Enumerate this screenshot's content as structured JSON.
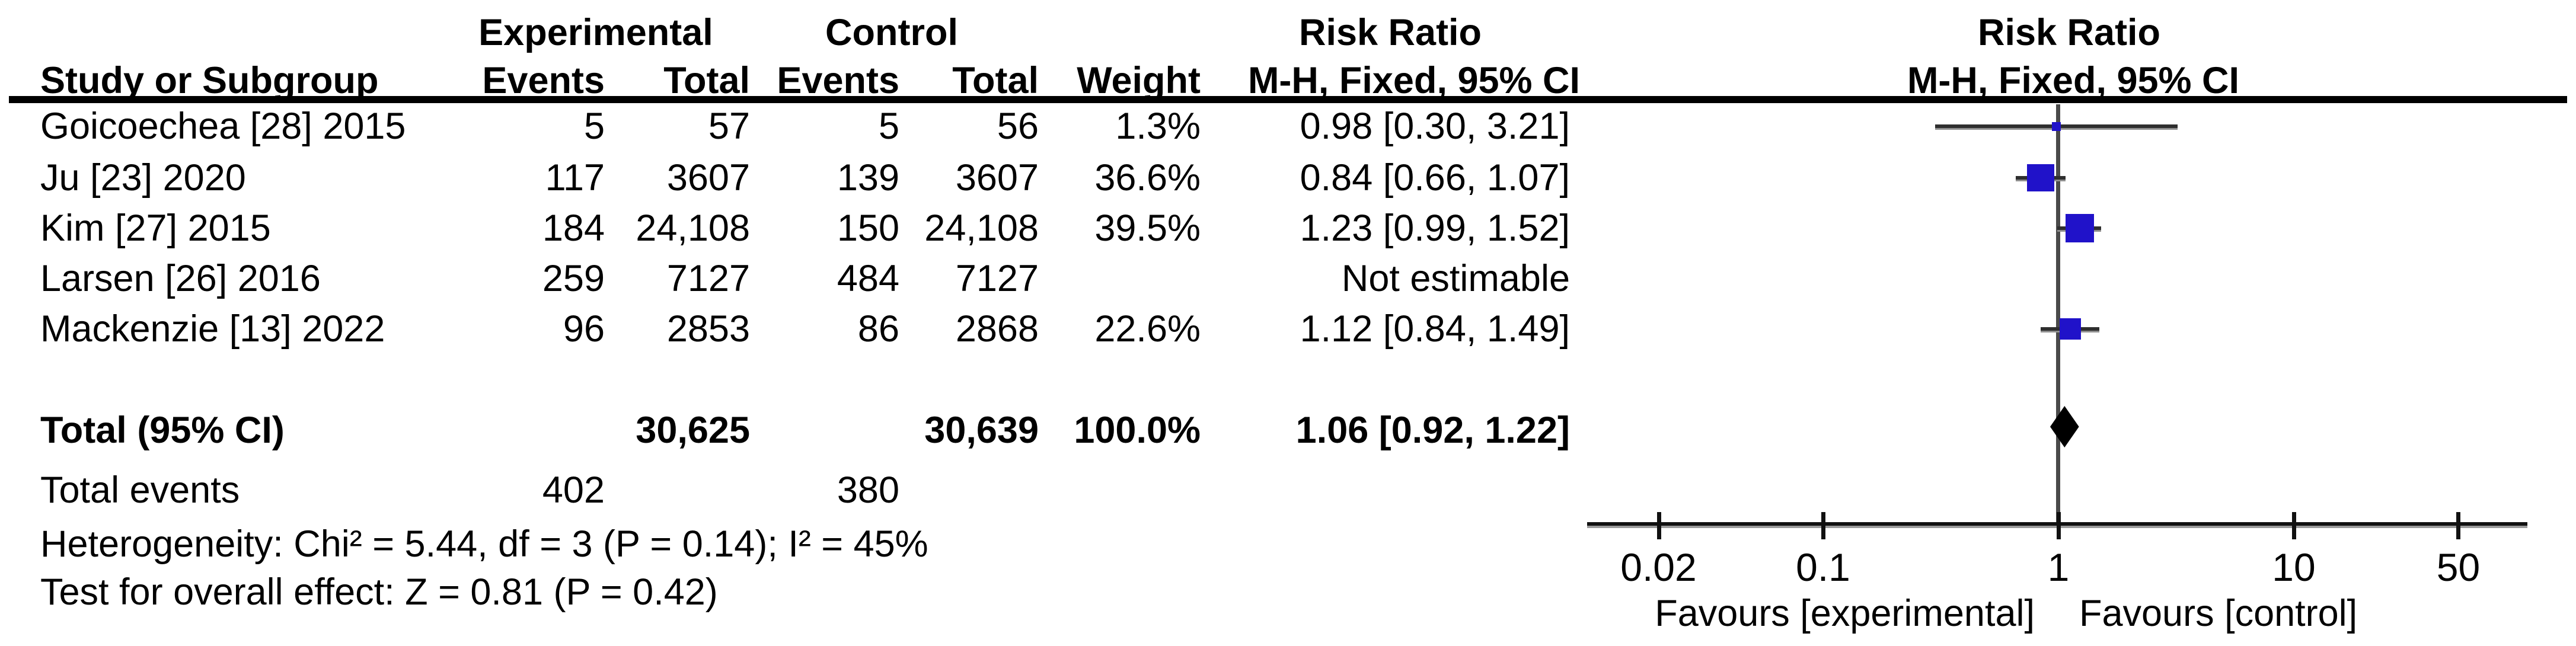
{
  "header": {
    "group_exp": "Experimental",
    "group_ctrl": "Control",
    "rr_col": "Risk Ratio",
    "rr_plot": "Risk Ratio",
    "study": "Study or Subgroup",
    "events": "Events",
    "total": "Total",
    "weight": "Weight",
    "mh_col": "M-H, Fixed, 95% CI",
    "mh_plot": "M-H, Fixed, 95% CI"
  },
  "chart_data": {
    "type": "forest",
    "effect_measure": "Risk Ratio",
    "method_label": "M-H, Fixed, 95% CI",
    "studies": [
      {
        "name": "Goicoechea [28] 2015",
        "exp_events": "5",
        "exp_total": "57",
        "ctrl_events": "5",
        "ctrl_total": "56",
        "weight": "1.3%",
        "weight_num": 1.3,
        "rr_text": "0.98 [0.30, 3.21]",
        "rr": 0.98,
        "ci_low": 0.3,
        "ci_high": 3.21,
        "estimable": true
      },
      {
        "name": "Ju [23] 2020",
        "exp_events": "117",
        "exp_total": "3607",
        "ctrl_events": "139",
        "ctrl_total": "3607",
        "weight": "36.6%",
        "weight_num": 36.6,
        "rr_text": "0.84 [0.66, 1.07]",
        "rr": 0.84,
        "ci_low": 0.66,
        "ci_high": 1.07,
        "estimable": true
      },
      {
        "name": "Kim [27] 2015",
        "exp_events": "184",
        "exp_total": "24,108",
        "ctrl_events": "150",
        "ctrl_total": "24,108",
        "weight": "39.5%",
        "weight_num": 39.5,
        "rr_text": "1.23 [0.99, 1.52]",
        "rr": 1.23,
        "ci_low": 0.99,
        "ci_high": 1.52,
        "estimable": true
      },
      {
        "name": "Larsen [26] 2016",
        "exp_events": "259",
        "exp_total": "7127",
        "ctrl_events": "484",
        "ctrl_total": "7127",
        "weight": "",
        "weight_num": 0,
        "rr_text": "Not estimable",
        "rr": null,
        "ci_low": null,
        "ci_high": null,
        "estimable": false
      },
      {
        "name": "Mackenzie [13] 2022",
        "exp_events": "96",
        "exp_total": "2853",
        "ctrl_events": "86",
        "ctrl_total": "2868",
        "weight": "22.6%",
        "weight_num": 22.6,
        "rr_text": "1.12 [0.84, 1.49]",
        "rr": 1.12,
        "ci_low": 0.84,
        "ci_high": 1.49,
        "estimable": true
      }
    ],
    "total": {
      "label": "Total (95% CI)",
      "exp_total": "30,625",
      "ctrl_total": "30,639",
      "weight": "100.0%",
      "rr_text": "1.06 [0.92, 1.22]",
      "rr": 1.06,
      "ci_low": 0.92,
      "ci_high": 1.22
    },
    "total_events": {
      "label": "Total events",
      "exp": "402",
      "ctrl": "380"
    },
    "heterogeneity": "Heterogeneity: Chi² = 5.44, df = 3 (P = 0.14); I² = 45%",
    "overall_effect": "Test for overall effect: Z = 0.81 (P = 0.42)",
    "axis": {
      "scale": "log",
      "tick_values": [
        0.02,
        0.1,
        1,
        10,
        50
      ],
      "tick_labels": [
        "0.02",
        "0.1",
        "1",
        "10",
        "50"
      ],
      "range": [
        0.02,
        50
      ]
    },
    "favours_left": "Favours [experimental]",
    "favours_right": "Favours [control]",
    "colors": {
      "square": "#2012C9",
      "diamond": "#000000",
      "ci_line": "#2e2e2e",
      "center_line": "#4a4a4a",
      "axis_line": "#111111"
    }
  }
}
